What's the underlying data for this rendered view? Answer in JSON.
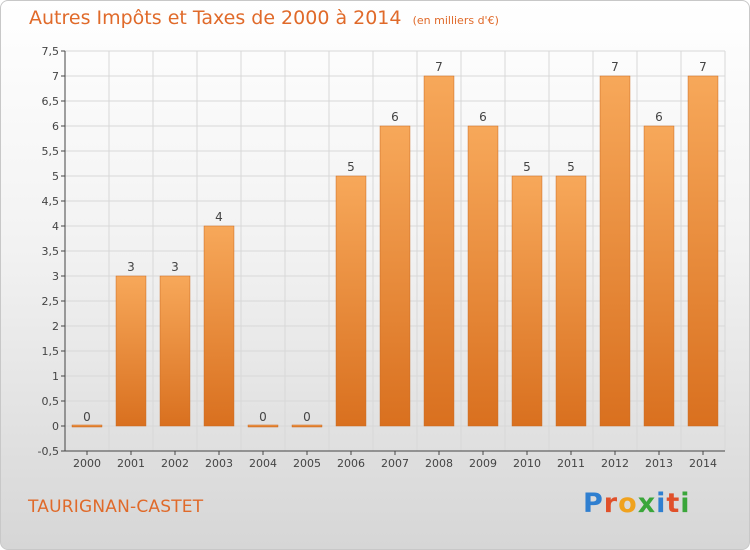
{
  "title": "Autres Impôts et Taxes de 2000 à 2014",
  "subtitle": "(en milliers d'€)",
  "commune": "TAURIGNAN-CASTET",
  "brand": {
    "text": "Proxiti",
    "letter_colors": [
      "#2f7fd0",
      "#e0502a",
      "#f0a21e",
      "#3aa63a",
      "#2f7fd0",
      "#e0502a",
      "#3aa63a"
    ]
  },
  "colors": {
    "title": "#e06a2a",
    "bar_top": "#f7a85a",
    "bar_bottom": "#d9701f",
    "grid": "#d8d8d8",
    "axis": "#444444"
  },
  "chart_data": {
    "type": "bar",
    "title": "Autres Impôts et Taxes de 2000 à 2014",
    "subtitle": "(en milliers d'€)",
    "categories": [
      "2000",
      "2001",
      "2002",
      "2003",
      "2004",
      "2005",
      "2006",
      "2007",
      "2008",
      "2009",
      "2010",
      "2011",
      "2012",
      "2013",
      "2014"
    ],
    "values": [
      0,
      3,
      3,
      4,
      0,
      0,
      5,
      6,
      7,
      6,
      5,
      5,
      7,
      6,
      7
    ],
    "data_labels": [
      "0",
      "3",
      "3",
      "4",
      "0",
      "0",
      "5",
      "6",
      "7",
      "6",
      "5",
      "5",
      "7",
      "6",
      "7"
    ],
    "ylim": [
      -0.5,
      7.5
    ],
    "y_ticks": [
      "-0,5",
      "0",
      "0,5",
      "1",
      "1,5",
      "2",
      "2,5",
      "3",
      "3,5",
      "4",
      "4,5",
      "5",
      "5,5",
      "6",
      "6,5",
      "7",
      "7,5"
    ],
    "y_tick_values": [
      -0.5,
      0,
      0.5,
      1,
      1.5,
      2,
      2.5,
      3,
      3.5,
      4,
      4.5,
      5,
      5.5,
      6,
      6.5,
      7,
      7.5
    ],
    "grid": true
  }
}
